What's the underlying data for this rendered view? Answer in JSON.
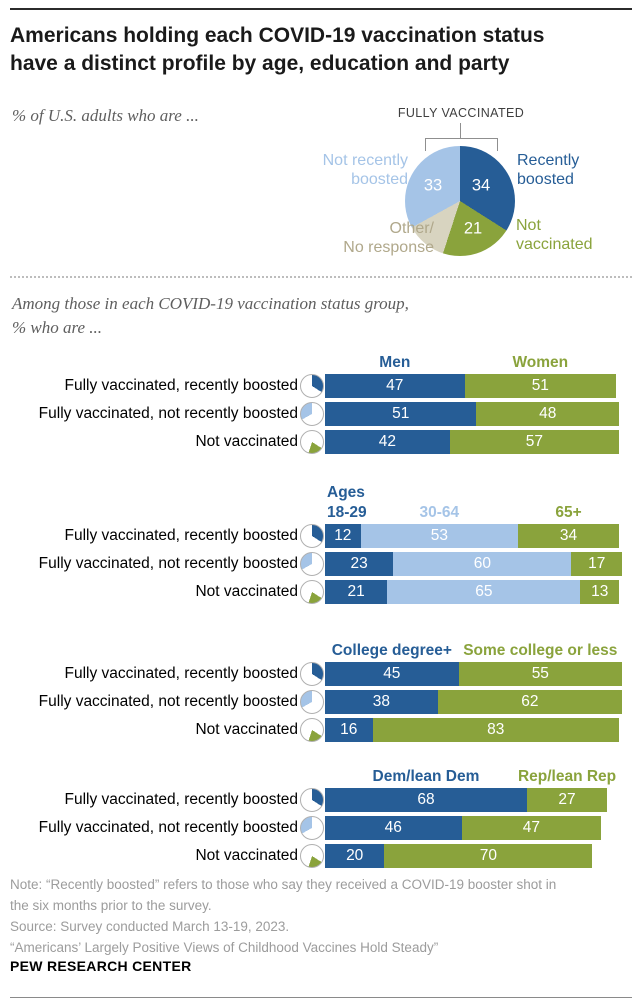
{
  "title_lines": [
    "Americans holding each COVID-19 vaccination status",
    "have a distinct profile by age, education and party"
  ],
  "intro_lines": [
    "Among those in each COVID-19 vaccination status group,",
    "% who are ..."
  ],
  "colors": {
    "dark_blue": "#265d96",
    "light_blue": "#a5c4e7",
    "green": "#8aa33c",
    "beige": "#d8d4c0",
    "beige_text": "#b0a88b",
    "footer_gray": "#9c9c9c"
  },
  "chart_data": [
    {
      "type": "pie",
      "title": "% of U.S. adults who are ...",
      "bracket_label": "FULLY VACCINATED",
      "legend_position": "around-slices",
      "slices": [
        {
          "label": "Recently\nboosted",
          "value": 34,
          "color": "#265d96",
          "value_shown": true
        },
        {
          "label": "Not\nvaccinated",
          "value": 21,
          "color": "#8aa33c",
          "value_shown": true
        },
        {
          "label": "Other/\nNo response",
          "value": 12,
          "color": "#d8d4c0",
          "value_shown": false
        },
        {
          "label": "Not recently\nboosted",
          "value": 33,
          "color": "#a5c4e7",
          "value_shown": true
        }
      ]
    },
    {
      "type": "bar",
      "subtype": "horizontal-stacked",
      "title": "Among those in each COVID-19 vaccination status group, % who are ...",
      "axis_range": [
        0,
        100
      ],
      "grid": false,
      "categories": [
        "Fully vaccinated, recently boosted",
        "Fully vaccinated, not recently boosted",
        "Not vaccinated"
      ],
      "groups": [
        {
          "name": "gender",
          "headers": [
            "Men",
            "Women"
          ],
          "colors": [
            "#265d96",
            "#8aa33c"
          ],
          "rows": [
            [
              47,
              51
            ],
            [
              51,
              48
            ],
            [
              42,
              57
            ]
          ]
        },
        {
          "name": "age",
          "headers": [
            "Ages\n18-29",
            "30-64",
            "65+"
          ],
          "colors": [
            "#265d96",
            "#a5c4e7",
            "#8aa33c"
          ],
          "rows": [
            [
              12,
              53,
              34
            ],
            [
              23,
              60,
              17
            ],
            [
              21,
              65,
              13
            ]
          ]
        },
        {
          "name": "education",
          "headers": [
            "College degree+",
            "Some college or less"
          ],
          "colors": [
            "#265d96",
            "#8aa33c"
          ],
          "rows": [
            [
              45,
              55
            ],
            [
              38,
              62
            ],
            [
              16,
              83
            ]
          ]
        },
        {
          "name": "party",
          "headers": [
            "Dem/lean Dem",
            "Rep/lean Rep"
          ],
          "colors": [
            "#265d96",
            "#8aa33c"
          ],
          "rows": [
            [
              68,
              27
            ],
            [
              46,
              47
            ],
            [
              20,
              70
            ]
          ]
        }
      ]
    }
  ],
  "footer": {
    "lines": [
      "Note: “Recently boosted” refers to those who say they received a COVID-19 booster shot in",
      "the six months prior to the survey.",
      "Source: Survey conducted March 13-19, 2023.",
      "“Americans’ Largely Positive Views of Childhood Vaccines Hold Steady”"
    ],
    "brand": "PEW RESEARCH CENTER"
  }
}
